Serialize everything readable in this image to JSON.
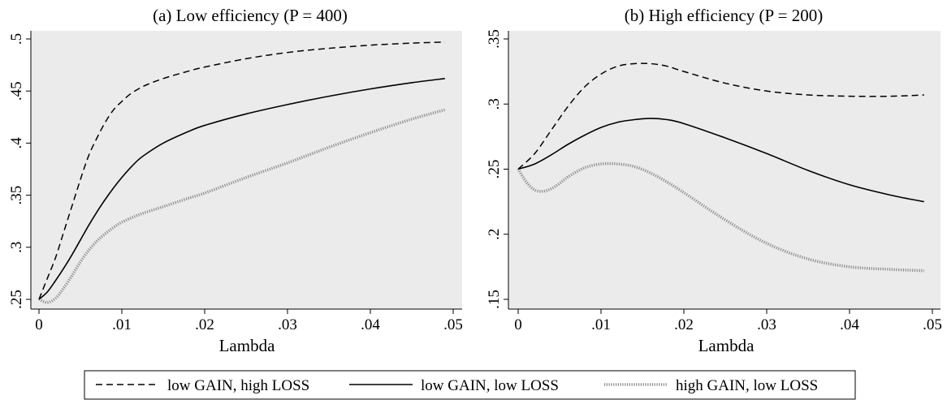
{
  "chart_data": [
    {
      "type": "line",
      "title": "(a) Low efficiency (P = 400)",
      "xlabel": "Lambda",
      "ylabel": "",
      "xlim": [
        0,
        0.05
      ],
      "ylim": [
        0.25,
        0.5
      ],
      "xticks": [
        "0",
        ".01",
        ".02",
        ".03",
        ".04",
        ".05"
      ],
      "xtick_values": [
        0,
        0.01,
        0.02,
        0.03,
        0.04,
        0.05
      ],
      "yticks": [
        ".25",
        ".3",
        ".35",
        ".4",
        ".45",
        ".5"
      ],
      "ytick_values": [
        0.25,
        0.3,
        0.35,
        0.4,
        0.45,
        0.5
      ],
      "grid": false,
      "series": [
        {
          "name": "low GAIN, high LOSS",
          "style": "dashed",
          "x": [
            0,
            0.001,
            0.002,
            0.003,
            0.004,
            0.005,
            0.006,
            0.007,
            0.008,
            0.009,
            0.01,
            0.011,
            0.012,
            0.013,
            0.015,
            0.018,
            0.02,
            0.025,
            0.03,
            0.035,
            0.04,
            0.045,
            0.049
          ],
          "y": [
            0.25,
            0.27,
            0.29,
            0.315,
            0.34,
            0.365,
            0.388,
            0.405,
            0.42,
            0.432,
            0.44,
            0.447,
            0.452,
            0.456,
            0.462,
            0.469,
            0.473,
            0.481,
            0.487,
            0.491,
            0.494,
            0.496,
            0.497
          ]
        },
        {
          "name": "low GAIN, low LOSS",
          "style": "solid",
          "x": [
            0,
            0.001,
            0.002,
            0.003,
            0.004,
            0.005,
            0.006,
            0.007,
            0.008,
            0.009,
            0.01,
            0.011,
            0.012,
            0.013,
            0.015,
            0.018,
            0.02,
            0.025,
            0.03,
            0.035,
            0.04,
            0.045,
            0.049
          ],
          "y": [
            0.25,
            0.257,
            0.268,
            0.28,
            0.293,
            0.307,
            0.321,
            0.334,
            0.346,
            0.357,
            0.367,
            0.376,
            0.384,
            0.39,
            0.4,
            0.411,
            0.417,
            0.428,
            0.437,
            0.445,
            0.452,
            0.458,
            0.462
          ]
        },
        {
          "name": "high GAIN, low LOSS",
          "style": "dotted",
          "x": [
            0,
            0.001,
            0.002,
            0.003,
            0.004,
            0.005,
            0.006,
            0.007,
            0.008,
            0.009,
            0.01,
            0.012,
            0.015,
            0.018,
            0.02,
            0.025,
            0.03,
            0.035,
            0.04,
            0.045,
            0.049
          ],
          "y": [
            0.25,
            0.247,
            0.251,
            0.261,
            0.273,
            0.286,
            0.297,
            0.306,
            0.313,
            0.319,
            0.324,
            0.331,
            0.339,
            0.347,
            0.352,
            0.367,
            0.381,
            0.396,
            0.41,
            0.423,
            0.432
          ]
        }
      ]
    },
    {
      "type": "line",
      "title": "(b) High efficiency (P = 200)",
      "xlabel": "Lambda",
      "ylabel": "",
      "xlim": [
        0,
        0.05
      ],
      "ylim": [
        0.15,
        0.35
      ],
      "xticks": [
        "0",
        ".01",
        ".02",
        ".03",
        ".04",
        ".05"
      ],
      "xtick_values": [
        0,
        0.01,
        0.02,
        0.03,
        0.04,
        0.05
      ],
      "yticks": [
        ".15",
        ".2",
        ".25",
        ".3",
        ".35"
      ],
      "ytick_values": [
        0.15,
        0.2,
        0.25,
        0.3,
        0.35
      ],
      "grid": false,
      "series": [
        {
          "name": "low GAIN, high LOSS",
          "style": "dashed",
          "x": [
            0,
            0.002,
            0.004,
            0.006,
            0.008,
            0.01,
            0.012,
            0.014,
            0.016,
            0.018,
            0.02,
            0.025,
            0.03,
            0.035,
            0.04,
            0.045,
            0.049
          ],
          "y": [
            0.25,
            0.262,
            0.28,
            0.298,
            0.313,
            0.323,
            0.329,
            0.331,
            0.331,
            0.329,
            0.325,
            0.316,
            0.31,
            0.307,
            0.306,
            0.306,
            0.307
          ]
        },
        {
          "name": "low GAIN, low LOSS",
          "style": "solid",
          "x": [
            0,
            0.002,
            0.004,
            0.006,
            0.008,
            0.01,
            0.012,
            0.014,
            0.016,
            0.018,
            0.02,
            0.025,
            0.03,
            0.035,
            0.04,
            0.045,
            0.049
          ],
          "y": [
            0.25,
            0.254,
            0.261,
            0.269,
            0.276,
            0.282,
            0.286,
            0.288,
            0.289,
            0.288,
            0.285,
            0.274,
            0.262,
            0.249,
            0.238,
            0.23,
            0.225
          ]
        },
        {
          "name": "high GAIN, low LOSS",
          "style": "dotted",
          "x": [
            0,
            0.001,
            0.002,
            0.003,
            0.004,
            0.005,
            0.006,
            0.008,
            0.01,
            0.012,
            0.014,
            0.016,
            0.018,
            0.02,
            0.025,
            0.03,
            0.035,
            0.04,
            0.045,
            0.049
          ],
          "y": [
            0.25,
            0.24,
            0.234,
            0.233,
            0.235,
            0.239,
            0.244,
            0.251,
            0.254,
            0.254,
            0.252,
            0.247,
            0.24,
            0.232,
            0.211,
            0.193,
            0.181,
            0.175,
            0.173,
            0.172
          ]
        }
      ]
    }
  ],
  "legend": {
    "position": "bottom",
    "items": [
      {
        "label": "low GAIN, high LOSS",
        "style": "dashed"
      },
      {
        "label": "low GAIN, low LOSS",
        "style": "solid"
      },
      {
        "label": "high GAIN, low LOSS",
        "style": "dotted"
      }
    ]
  },
  "colors": {
    "plot_background": "#ebebeb",
    "line": "#000000",
    "dotted_line": "#8c8c8c"
  }
}
